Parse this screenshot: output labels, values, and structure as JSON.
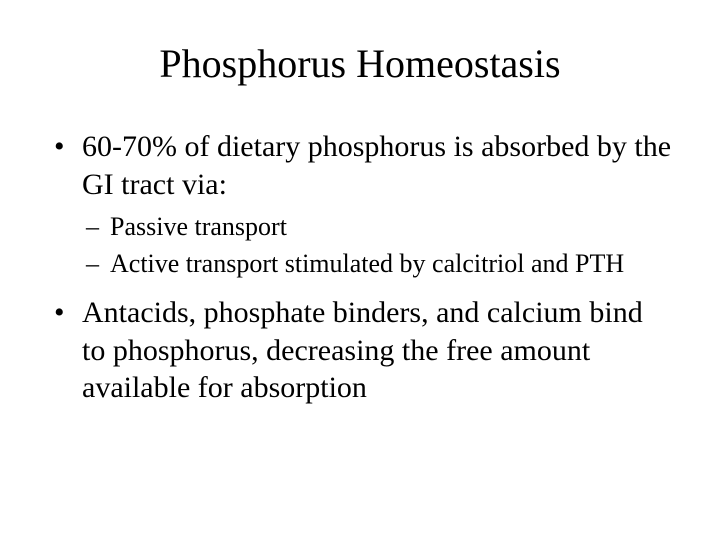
{
  "slide": {
    "title": "Phosphorus Homeostasis",
    "title_fontsize": 40,
    "body_fontsize": 30,
    "sub_fontsize": 26,
    "background_color": "#ffffff",
    "text_color": "#000000",
    "font_family": "Times New Roman",
    "bullets": [
      {
        "text": "60-70% of dietary phosphorus is absorbed by the GI tract via:",
        "sub": [
          "Passive transport",
          "Active transport stimulated by calcitriol and PTH"
        ]
      },
      {
        "text": "Antacids, phosphate binders, and calcium bind to phosphorus, decreasing the free amount available for absorption",
        "sub": []
      }
    ]
  }
}
